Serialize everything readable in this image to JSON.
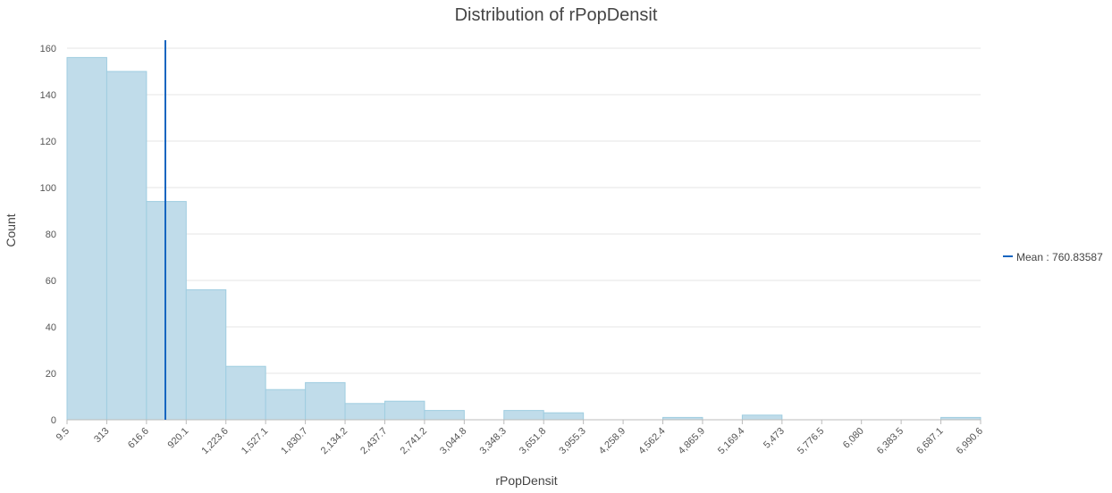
{
  "chart_data": {
    "type": "bar",
    "title": "Distribution of rPopDensit",
    "xlabel": "rPopDensit",
    "ylabel": "Count",
    "bin_edges": [
      9.5,
      313,
      616.6,
      920.1,
      1223.6,
      1527.1,
      1830.7,
      2134.2,
      2437.7,
      2741.2,
      3044.8,
      3348.3,
      3651.8,
      3955.3,
      4258.9,
      4562.4,
      4865.9,
      5169.4,
      5473,
      5776.5,
      6080,
      6383.5,
      6687.1,
      6990.6
    ],
    "x_tick_labels": [
      "9.5",
      "313",
      "616.6",
      "920.1",
      "1,223.6",
      "1,527.1",
      "1,830.7",
      "2,134.2",
      "2,437.7",
      "2,741.2",
      "3,044.8",
      "3,348.3",
      "3,651.8",
      "3,955.3",
      "4,258.9",
      "4,562.4",
      "4,865.9",
      "5,169.4",
      "5,473",
      "5,776.5",
      "6,080",
      "6,383.5",
      "6,687.1",
      "6,990.6"
    ],
    "values": [
      156,
      150,
      94,
      56,
      23,
      13,
      16,
      7,
      8,
      4,
      0,
      4,
      3,
      0,
      0,
      1,
      0,
      2,
      0,
      0,
      0,
      0,
      1
    ],
    "xlim": [
      9.5,
      6990.6
    ],
    "ylim": [
      0,
      160
    ],
    "y_ticks": [
      0,
      20,
      40,
      60,
      80,
      100,
      120,
      140,
      160
    ],
    "mean": 760.83587,
    "legend": {
      "label": "Mean : 760.83587",
      "placement": "right"
    },
    "grid": true,
    "colors": {
      "bar_fill": "#c0dcea",
      "bar_stroke": "#9fcde0",
      "mean_line": "#1565c0",
      "grid": "#e6e6e6",
      "axis": "#bbbbbb"
    }
  }
}
